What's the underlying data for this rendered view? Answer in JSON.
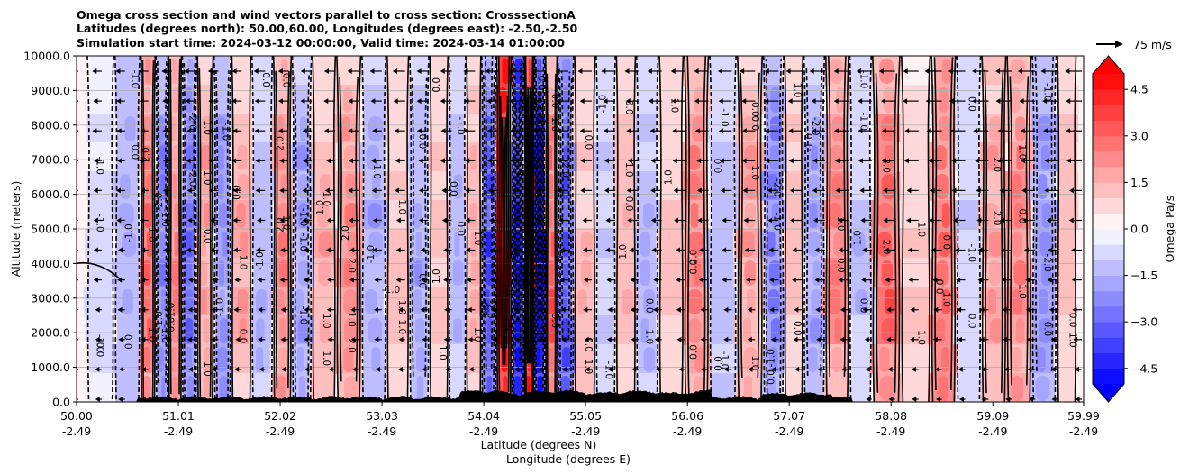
{
  "chart_data": {
    "type": "heatmap",
    "title_lines": [
      "Omega cross section and wind vectors parallel to cross section: CrosssectionA",
      "Latitudes (degrees north): 50.00,60.00, Longitudes (degrees east): -2.50,-2.50",
      "Simulation start time: 2024-03-12 00:00:00, Valid time: 2024-03-14 01:00:00"
    ],
    "ylabel": "Altitude (meters)",
    "xlabel_lines": [
      "Latitude (degrees N)",
      "Longitude (degrees E)"
    ],
    "ylim": [
      0,
      10000
    ],
    "y_ticks": [
      "0.0",
      "1000.0",
      "2000.0",
      "3000.0",
      "4000.0",
      "5000.0",
      "6000.0",
      "7000.0",
      "8000.0",
      "9000.0",
      "10000.0"
    ],
    "x_ticks": [
      {
        "lat": "50.00",
        "lon": "-2.49"
      },
      {
        "lat": "51.01",
        "lon": "-2.49"
      },
      {
        "lat": "52.02",
        "lon": "-2.49"
      },
      {
        "lat": "53.03",
        "lon": "-2.49"
      },
      {
        "lat": "54.04",
        "lon": "-2.49"
      },
      {
        "lat": "55.05",
        "lon": "-2.49"
      },
      {
        "lat": "56.06",
        "lon": "-2.49"
      },
      {
        "lat": "57.07",
        "lon": "-2.49"
      },
      {
        "lat": "58.08",
        "lon": "-2.49"
      },
      {
        "lat": "59.09",
        "lon": "-2.49"
      },
      {
        "lat": "59.99",
        "lon": "-2.49"
      }
    ],
    "grid": "horizontal",
    "colorbar": {
      "label": "Omega Pa/s",
      "ticks": [
        "4.5",
        "3.0",
        "1.5",
        "0.0",
        "−1.5",
        "−3.0",
        "−4.5"
      ],
      "range": [
        -5,
        5
      ],
      "levels": 20,
      "extend": "both",
      "colormap": "bwr"
    },
    "quiver_key": {
      "label": "75 m/s"
    },
    "contour_labels": [
      "0.0",
      "1.0",
      "-1.0",
      "2.0",
      "-2.0",
      "3.0",
      "-3.0"
    ],
    "omega_bands": [
      {
        "lat": 50.2,
        "omega": -0.6
      },
      {
        "lat": 50.55,
        "omega": -1.4
      },
      {
        "lat": 50.72,
        "omega": 2.2
      },
      {
        "lat": 50.85,
        "omega": -2.0
      },
      {
        "lat": 50.97,
        "omega": 1.8
      },
      {
        "lat": 51.12,
        "omega": -2.2
      },
      {
        "lat": 51.27,
        "omega": 1.6
      },
      {
        "lat": 51.45,
        "omega": -1.8
      },
      {
        "lat": 51.62,
        "omega": 1.4
      },
      {
        "lat": 51.85,
        "omega": -1.2
      },
      {
        "lat": 52.05,
        "omega": 1.9
      },
      {
        "lat": 52.22,
        "omega": -1.6
      },
      {
        "lat": 52.45,
        "omega": 1.3
      },
      {
        "lat": 52.7,
        "omega": 2.0
      },
      {
        "lat": 52.95,
        "omega": -1.4
      },
      {
        "lat": 53.2,
        "omega": 1.1
      },
      {
        "lat": 53.4,
        "omega": -1.5
      },
      {
        "lat": 53.6,
        "omega": 1.0
      },
      {
        "lat": 53.78,
        "omega": -1.2
      },
      {
        "lat": 53.95,
        "omega": 1.4
      },
      {
        "lat": 54.08,
        "omega": -2.6
      },
      {
        "lat": 54.25,
        "omega": 4.8
      },
      {
        "lat": 54.38,
        "omega": -4.0
      },
      {
        "lat": 54.5,
        "omega": 4.3
      },
      {
        "lat": 54.58,
        "omega": -5.0
      },
      {
        "lat": 54.72,
        "omega": 2.4
      },
      {
        "lat": 54.82,
        "omega": -2.6
      },
      {
        "lat": 55.05,
        "omega": 1.2
      },
      {
        "lat": 55.25,
        "omega": -1.0
      },
      {
        "lat": 55.45,
        "omega": 1.1
      },
      {
        "lat": 55.65,
        "omega": -1.3
      },
      {
        "lat": 55.9,
        "omega": 1.0
      },
      {
        "lat": 56.15,
        "omega": 2.1
      },
      {
        "lat": 56.4,
        "omega": -1.1
      },
      {
        "lat": 56.7,
        "omega": 1.6
      },
      {
        "lat": 56.92,
        "omega": -2.0
      },
      {
        "lat": 57.12,
        "omega": 1.2
      },
      {
        "lat": 57.3,
        "omega": -1.6
      },
      {
        "lat": 57.55,
        "omega": 1.9
      },
      {
        "lat": 57.78,
        "omega": -1.1
      },
      {
        "lat": 58.0,
        "omega": 2.4
      },
      {
        "lat": 58.35,
        "omega": 1.0
      },
      {
        "lat": 58.6,
        "omega": 2.3
      },
      {
        "lat": 58.85,
        "omega": -0.9
      },
      {
        "lat": 59.1,
        "omega": 1.5
      },
      {
        "lat": 59.35,
        "omega": 2.0
      },
      {
        "lat": 59.6,
        "omega": -1.8
      },
      {
        "lat": 59.85,
        "omega": 1.2
      }
    ]
  }
}
